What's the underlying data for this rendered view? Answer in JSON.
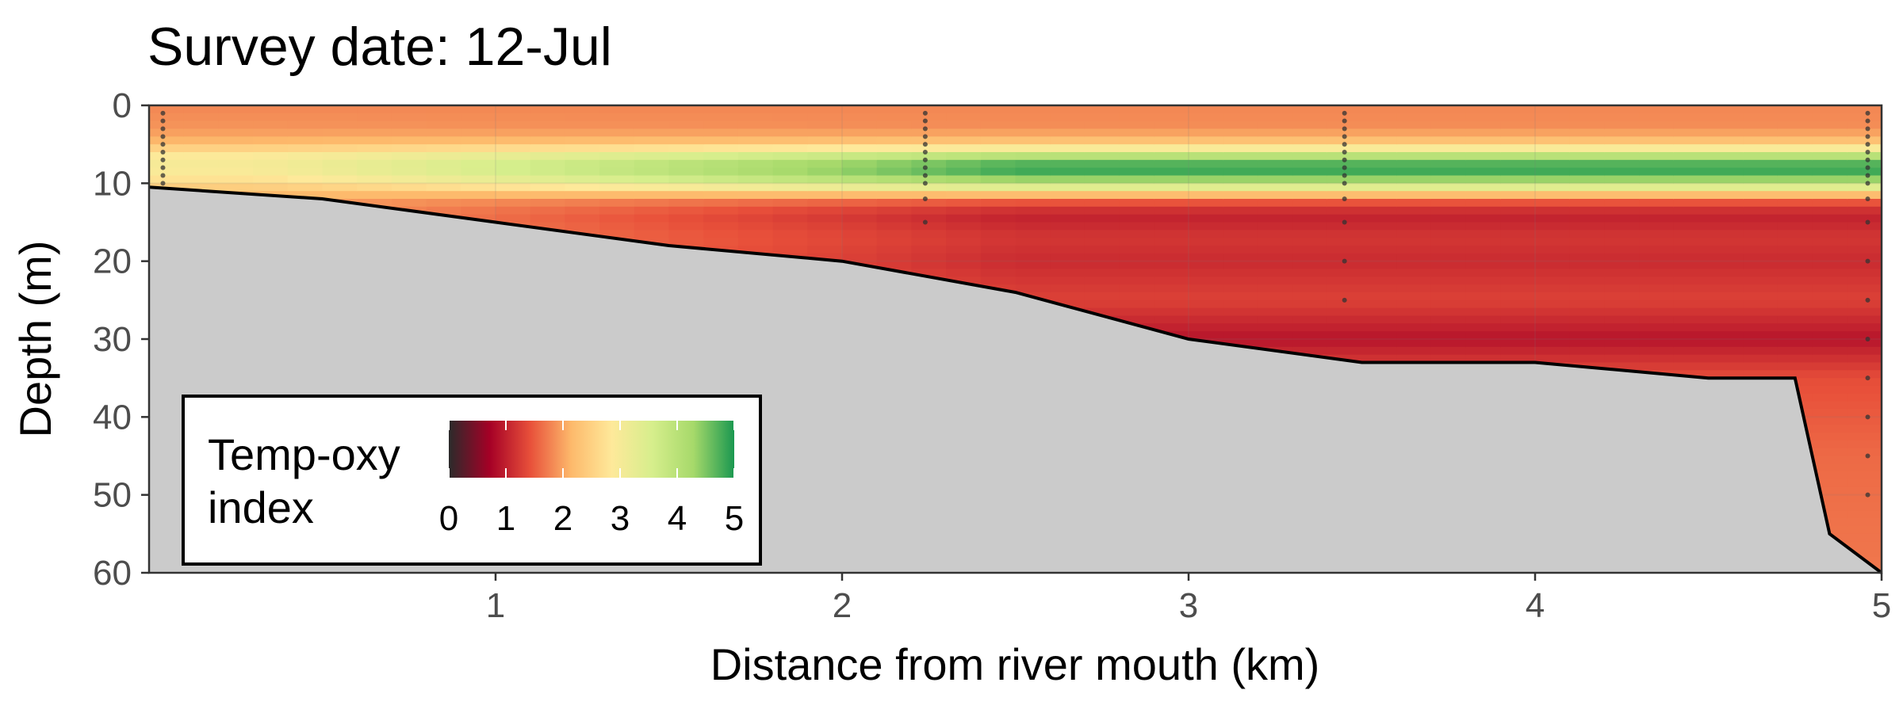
{
  "chart_data": {
    "type": "heatmap",
    "title": "Survey date: 12-Jul",
    "xlabel": "Distance from river mouth (km)",
    "ylabel": "Depth (m)",
    "xlim": [
      0,
      5
    ],
    "ylim": [
      60,
      0
    ],
    "x_ticks": [
      "1",
      "2",
      "3",
      "4",
      "5"
    ],
    "y_ticks": [
      "0",
      "10",
      "20",
      "30",
      "40",
      "50",
      "60"
    ],
    "y_tick_values": [
      0,
      10,
      20,
      30,
      40,
      50,
      60
    ],
    "x_tick_values": [
      1,
      2,
      3,
      4,
      5
    ],
    "legend": {
      "title_lines": [
        "Temp-oxy",
        "index"
      ],
      "ticks": [
        "0",
        "1",
        "2",
        "3",
        "4",
        "5"
      ],
      "tick_values": [
        0,
        1,
        2,
        3,
        4,
        5
      ],
      "range": [
        0,
        5
      ],
      "colors": [
        "#2b2b2b",
        "#a50026",
        "#e8503a",
        "#fdb96b",
        "#fee99a",
        "#d6ee8c",
        "#a6d96a",
        "#1a9850"
      ],
      "placement": "bottom-left"
    },
    "bottom_profile": {
      "x": [
        0,
        0.5,
        1.0,
        1.5,
        2.0,
        2.5,
        3.0,
        3.5,
        4.0,
        4.5,
        4.75,
        4.8,
        4.85,
        5.0
      ],
      "depth": [
        10.5,
        12,
        15,
        18,
        20,
        24,
        30,
        33,
        33,
        35,
        35,
        45,
        55,
        60
      ]
    },
    "sample_stations": [
      {
        "x": 0.04,
        "depths": [
          1,
          2,
          3,
          4,
          5,
          6,
          7,
          8,
          9,
          10
        ]
      },
      {
        "x": 2.24,
        "depths": [
          1,
          2,
          3,
          4,
          5,
          6,
          7,
          8,
          9,
          10,
          12,
          15
        ]
      },
      {
        "x": 3.45,
        "depths": [
          1,
          2,
          3,
          4,
          5,
          6,
          7,
          8,
          9,
          10,
          12,
          15,
          20,
          25
        ]
      },
      {
        "x": 4.96,
        "depths": [
          1,
          2,
          3,
          4,
          5,
          6,
          7,
          8,
          9,
          10,
          12,
          15,
          20,
          25,
          30,
          35,
          40,
          45,
          50
        ]
      }
    ],
    "index_profile": {
      "depth": [
        0,
        3,
        5,
        6,
        7,
        8,
        9,
        10,
        11,
        12,
        14,
        17,
        20,
        25,
        30,
        35,
        45,
        60
      ],
      "near_mouth": [
        1.8,
        1.9,
        2.2,
        2.8,
        3.0,
        3.0,
        2.9,
        2.6,
        2.3,
        2.0,
        1.9,
        1.9,
        1.9,
        1.9,
        1.9,
        1.9,
        1.9,
        1.9
      ],
      "offshore": [
        1.8,
        1.85,
        2.4,
        3.5,
        4.5,
        4.9,
        4.7,
        4.0,
        2.8,
        1.6,
        1.0,
        1.2,
        1.1,
        1.3,
        0.9,
        1.4,
        1.6,
        1.7
      ]
    },
    "grid": true
  },
  "colors": {
    "panel_border": "#333333",
    "seabed": "#cbcbcb",
    "bottom_line": "#000000",
    "station_dots": "#333333"
  }
}
